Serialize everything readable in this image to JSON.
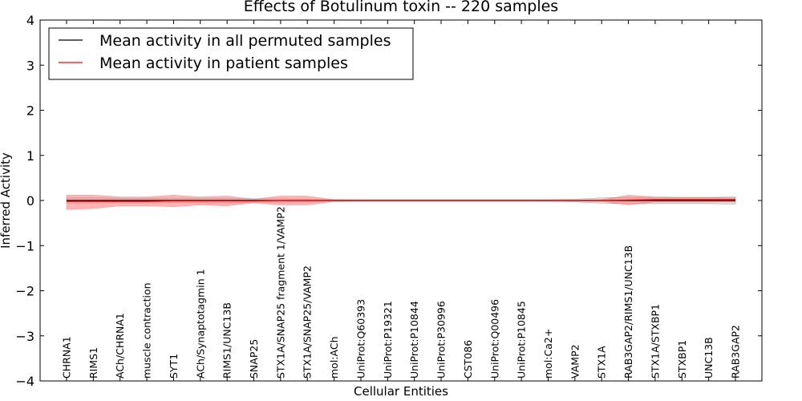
{
  "chart_data": {
    "type": "line",
    "title": "Effects of Botulinum toxin -- 220 samples",
    "xlabel": "Cellular Entities",
    "ylabel": "Inferred Activity",
    "ylim": [
      -4,
      4
    ],
    "yticks": [
      "4",
      "3",
      "2",
      "1",
      "0",
      "−1",
      "−2",
      "−3",
      "−4"
    ],
    "ytick_values": [
      4,
      3,
      2,
      1,
      0,
      -1,
      -2,
      -3,
      -4
    ],
    "legend_position": "top-left",
    "categories": [
      "CHRNA1",
      "RIMS1",
      "ACh/CHRNA1",
      "muscle contraction",
      "SYT1",
      "ACh/Synaptotagmin 1",
      "RIMS1/UNC13B",
      "SNAP25",
      "STX1A/SNAP25 fragment 1/VAMP2",
      "STX1A/SNAP25/VAMP2",
      "mol:ACh",
      "UniProt:Q60393",
      "UniProt:P19321",
      "UniProt:P10844",
      "UniProt:P30996",
      "CST086",
      "UniProt:Q00496",
      "UniProt:P10845",
      "mol:Ca2+",
      "VAMP2",
      "STX1A",
      "RAB3GAP2/RIMS1/UNC13B",
      "STX1A/STXBP1",
      "STXBP1",
      "UNC13B",
      "RAB3GAP2"
    ],
    "series": [
      {
        "name": "Mean activity in all permuted samples",
        "color": "#000000",
        "values": [
          0.0,
          0.0,
          0.0,
          0.0,
          0.0,
          0.0,
          0.0,
          0.0,
          0.0,
          0.0,
          0.0,
          0.0,
          0.0,
          0.0,
          0.0,
          0.0,
          0.0,
          0.0,
          0.0,
          0.0,
          0.0,
          0.0,
          0.0,
          0.0,
          0.0,
          0.0
        ],
        "band_lower": [
          -0.06,
          -0.06,
          -0.05,
          -0.05,
          -0.05,
          -0.05,
          -0.05,
          -0.04,
          -0.04,
          -0.03,
          -0.02,
          -0.02,
          -0.02,
          -0.02,
          -0.02,
          -0.02,
          -0.02,
          -0.02,
          -0.02,
          -0.03,
          -0.06,
          -0.07,
          -0.07,
          -0.07,
          -0.07,
          -0.08
        ],
        "band_upper": [
          0.06,
          0.06,
          0.05,
          0.05,
          0.05,
          0.05,
          0.05,
          0.04,
          0.04,
          0.03,
          0.02,
          0.02,
          0.02,
          0.02,
          0.02,
          0.02,
          0.02,
          0.02,
          0.02,
          0.03,
          0.06,
          0.07,
          0.07,
          0.07,
          0.07,
          0.08
        ],
        "band_color": "#b0b0b0"
      },
      {
        "name": "Mean activity in patient samples",
        "color": "#ff0000",
        "values": [
          -0.02,
          -0.02,
          -0.02,
          -0.02,
          -0.01,
          -0.01,
          -0.01,
          -0.01,
          0.0,
          0.0,
          0.0,
          0.0,
          0.0,
          0.0,
          0.0,
          0.0,
          0.0,
          0.0,
          0.0,
          0.0,
          0.0,
          0.01,
          0.02,
          0.02,
          0.02,
          0.02
        ],
        "band_lower": [
          -0.2,
          -0.18,
          -0.12,
          -0.12,
          -0.14,
          -0.1,
          -0.12,
          -0.05,
          -0.1,
          -0.1,
          -0.02,
          -0.01,
          -0.01,
          -0.01,
          -0.01,
          -0.01,
          -0.01,
          -0.01,
          -0.01,
          -0.01,
          -0.02,
          -0.1,
          -0.03,
          -0.03,
          -0.03,
          -0.03
        ],
        "band_upper": [
          0.12,
          0.12,
          0.08,
          0.08,
          0.12,
          0.08,
          0.1,
          0.03,
          0.1,
          0.1,
          0.02,
          0.01,
          0.01,
          0.01,
          0.01,
          0.01,
          0.01,
          0.01,
          0.01,
          0.01,
          0.02,
          0.12,
          0.08,
          0.07,
          0.07,
          0.06
        ],
        "band_color": "#ff8080"
      }
    ]
  }
}
